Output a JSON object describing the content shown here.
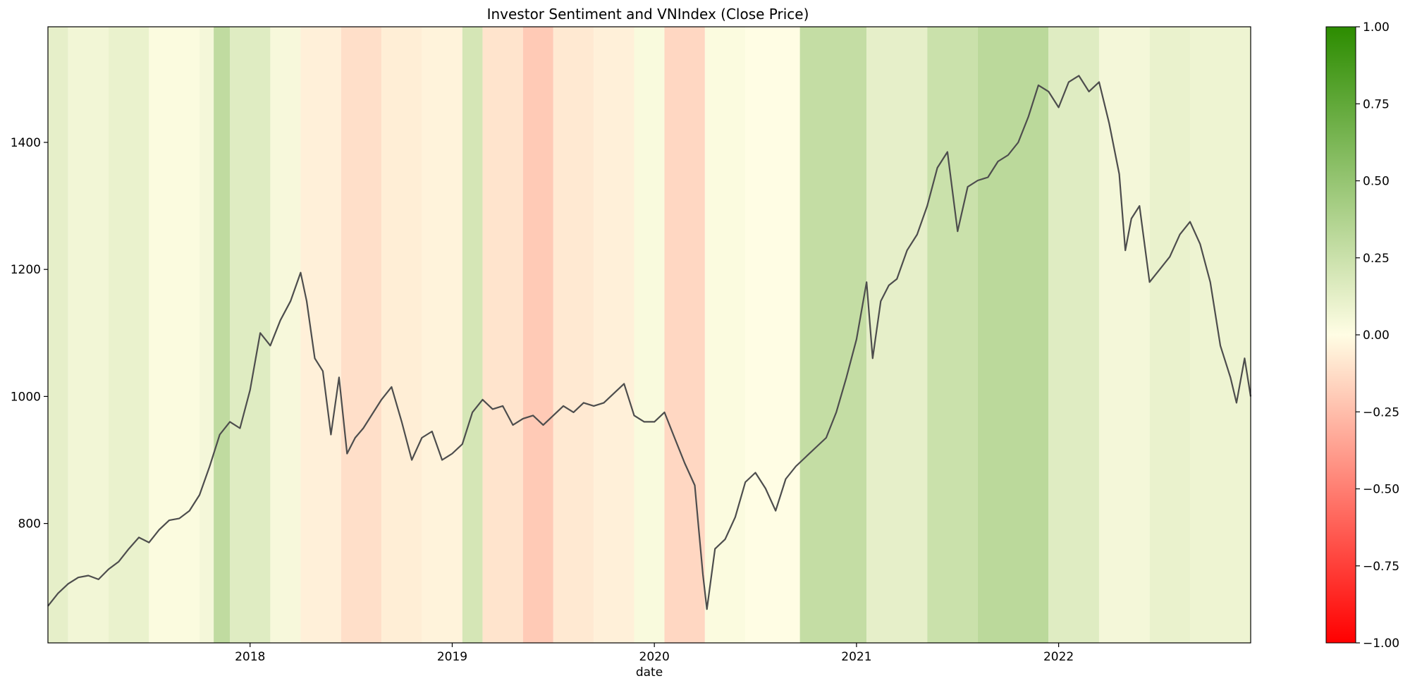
{
  "chart_data": {
    "type": "line",
    "title": "Investor Sentiment and VNIndex (Close Price)",
    "xlabel": "date",
    "ylabel": "",
    "x_tick_labels": [
      "2018",
      "2019",
      "2020",
      "2021",
      "2022"
    ],
    "x_tick_values": [
      2018.0,
      2019.0,
      2020.0,
      2021.0,
      2022.0
    ],
    "xlim": [
      2017.0,
      2022.95
    ],
    "ylim": [
      612,
      1582
    ],
    "y_ticks": [
      800,
      1000,
      1200,
      1400
    ],
    "grid": false,
    "series": [
      {
        "name": "",
        "color": "#4d4d4d",
        "x": [
          2017.0,
          2017.05,
          2017.1,
          2017.15,
          2017.2,
          2017.25,
          2017.3,
          2017.35,
          2017.4,
          2017.45,
          2017.5,
          2017.55,
          2017.6,
          2017.65,
          2017.7,
          2017.75,
          2017.8,
          2017.85,
          2017.9,
          2017.95,
          2018.0,
          2018.05,
          2018.1,
          2018.15,
          2018.2,
          2018.25,
          2018.28,
          2018.32,
          2018.36,
          2018.4,
          2018.44,
          2018.48,
          2018.52,
          2018.56,
          2018.6,
          2018.65,
          2018.7,
          2018.75,
          2018.8,
          2018.85,
          2018.9,
          2018.95,
          2019.0,
          2019.05,
          2019.1,
          2019.15,
          2019.2,
          2019.25,
          2019.3,
          2019.35,
          2019.4,
          2019.45,
          2019.5,
          2019.55,
          2019.6,
          2019.65,
          2019.7,
          2019.75,
          2019.8,
          2019.85,
          2019.9,
          2019.95,
          2020.0,
          2020.05,
          2020.1,
          2020.15,
          2020.2,
          2020.22,
          2020.24,
          2020.26,
          2020.3,
          2020.35,
          2020.4,
          2020.45,
          2020.5,
          2020.55,
          2020.6,
          2020.65,
          2020.7,
          2020.75,
          2020.8,
          2020.85,
          2020.9,
          2020.95,
          2021.0,
          2021.05,
          2021.08,
          2021.12,
          2021.16,
          2021.2,
          2021.25,
          2021.3,
          2021.35,
          2021.4,
          2021.45,
          2021.5,
          2021.55,
          2021.6,
          2021.65,
          2021.7,
          2021.75,
          2021.8,
          2021.85,
          2021.9,
          2021.95,
          2022.0,
          2022.05,
          2022.1,
          2022.15,
          2022.2,
          2022.25,
          2022.3,
          2022.33,
          2022.36,
          2022.4,
          2022.45,
          2022.5,
          2022.55,
          2022.6,
          2022.65,
          2022.7,
          2022.75,
          2022.8,
          2022.85,
          2022.88,
          2022.92,
          2022.95
        ],
        "values": [
          670,
          690,
          705,
          715,
          718,
          712,
          728,
          740,
          760,
          778,
          770,
          790,
          805,
          808,
          820,
          845,
          890,
          940,
          960,
          950,
          1010,
          1100,
          1080,
          1120,
          1150,
          1195,
          1150,
          1060,
          1040,
          940,
          1030,
          910,
          935,
          950,
          970,
          995,
          1015,
          960,
          900,
          935,
          945,
          900,
          910,
          925,
          975,
          995,
          980,
          985,
          955,
          965,
          970,
          955,
          970,
          985,
          975,
          990,
          985,
          990,
          1005,
          1020,
          970,
          960,
          960,
          975,
          935,
          895,
          860,
          790,
          720,
          665,
          760,
          775,
          810,
          865,
          880,
          855,
          820,
          870,
          890,
          905,
          920,
          935,
          975,
          1030,
          1090,
          1180,
          1060,
          1150,
          1175,
          1185,
          1230,
          1255,
          1300,
          1360,
          1385,
          1260,
          1330,
          1340,
          1345,
          1370,
          1380,
          1400,
          1440,
          1490,
          1480,
          1455,
          1495,
          1505,
          1480,
          1495,
          1430,
          1350,
          1230,
          1280,
          1300,
          1180,
          1200,
          1220,
          1255,
          1275,
          1240,
          1180,
          1080,
          1030,
          990,
          1060,
          1000
        ]
      }
    ],
    "background_sentiment": {
      "colormap": "red-white-green",
      "color_low": "#ff0000",
      "color_mid": "#fffde4",
      "color_high": "#2c8c00",
      "segments": [
        {
          "start": 2017.0,
          "end": 2017.1,
          "value": 0.12
        },
        {
          "start": 2017.1,
          "end": 2017.3,
          "value": 0.06
        },
        {
          "start": 2017.3,
          "end": 2017.5,
          "value": 0.1
        },
        {
          "start": 2017.5,
          "end": 2017.75,
          "value": 0.02
        },
        {
          "start": 2017.75,
          "end": 2017.82,
          "value": 0.05
        },
        {
          "start": 2017.82,
          "end": 2017.9,
          "value": 0.3
        },
        {
          "start": 2017.9,
          "end": 2018.1,
          "value": 0.15
        },
        {
          "start": 2018.1,
          "end": 2018.25,
          "value": 0.04
        },
        {
          "start": 2018.25,
          "end": 2018.45,
          "value": -0.05
        },
        {
          "start": 2018.45,
          "end": 2018.65,
          "value": -0.12
        },
        {
          "start": 2018.65,
          "end": 2018.85,
          "value": -0.06
        },
        {
          "start": 2018.85,
          "end": 2019.05,
          "value": -0.04
        },
        {
          "start": 2019.05,
          "end": 2019.15,
          "value": 0.2
        },
        {
          "start": 2019.15,
          "end": 2019.35,
          "value": -0.1
        },
        {
          "start": 2019.35,
          "end": 2019.5,
          "value": -0.2
        },
        {
          "start": 2019.5,
          "end": 2019.7,
          "value": -0.08
        },
        {
          "start": 2019.7,
          "end": 2019.9,
          "value": -0.05
        },
        {
          "start": 2019.9,
          "end": 2020.05,
          "value": 0.03
        },
        {
          "start": 2020.05,
          "end": 2020.25,
          "value": -0.15
        },
        {
          "start": 2020.25,
          "end": 2020.45,
          "value": 0.02
        },
        {
          "start": 2020.45,
          "end": 2020.72,
          "value": 0.0
        },
        {
          "start": 2020.72,
          "end": 2021.05,
          "value": 0.28
        },
        {
          "start": 2021.05,
          "end": 2021.35,
          "value": 0.12
        },
        {
          "start": 2021.35,
          "end": 2021.6,
          "value": 0.25
        },
        {
          "start": 2021.6,
          "end": 2021.95,
          "value": 0.32
        },
        {
          "start": 2021.95,
          "end": 2022.2,
          "value": 0.15
        },
        {
          "start": 2022.2,
          "end": 2022.45,
          "value": 0.05
        },
        {
          "start": 2022.45,
          "end": 2022.65,
          "value": 0.1
        },
        {
          "start": 2022.65,
          "end": 2022.95,
          "value": 0.08
        }
      ]
    },
    "colorbar": {
      "ticks": [
        1.0,
        0.75,
        0.5,
        0.25,
        0.0,
        -0.25,
        -0.5,
        -0.75,
        -1.0
      ],
      "tick_labels": [
        "1.00",
        "0.75",
        "0.50",
        "0.25",
        "0.00",
        "−0.25",
        "−0.50",
        "−0.75",
        "−1.00"
      ],
      "range": [
        -1.0,
        1.0
      ]
    }
  }
}
